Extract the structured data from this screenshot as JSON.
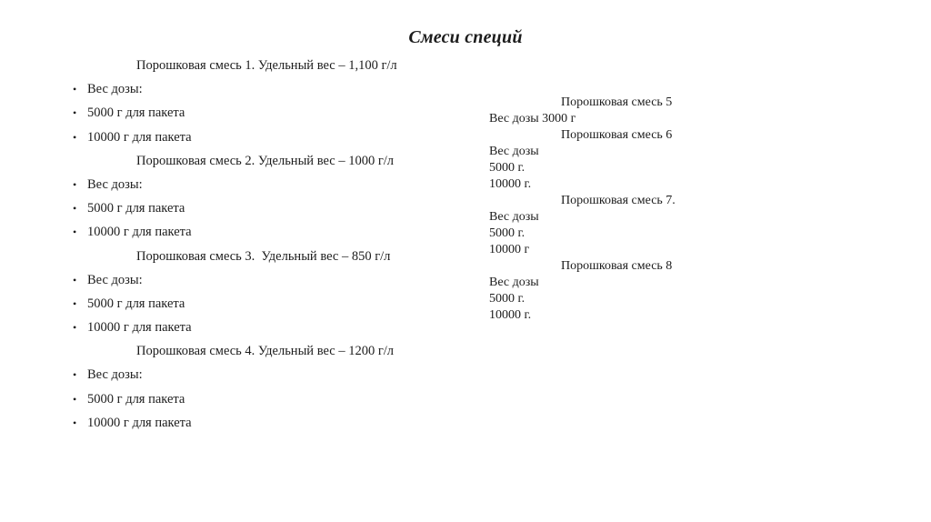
{
  "title": "Смеси специй",
  "glyphs": {
    "bullet": "•"
  },
  "left": {
    "sections": [
      {
        "header": "Порошковая смесь 1. Удельный вес – 1,100 г/л",
        "bullets": [
          "Вес дозы:",
          "5000 г для пакета",
          "10000 г для пакета"
        ]
      },
      {
        "header": "Порошковая смесь 2. Удельный вес – 1000 г/л",
        "bullets": [
          "Вес дозы:",
          "5000 г для пакета",
          "10000 г для пакета"
        ]
      },
      {
        "header": "Порошковая смесь 3.  Удельный вес – 850 г/л",
        "bullets": [
          "Вес дозы:",
          "5000 г для пакета",
          "10000 г для пакета"
        ]
      },
      {
        "header": "Порошковая смесь 4. Удельный вес – 1200 г/л",
        "bullets": [
          "Вес дозы:",
          "5000 г для пакета",
          "10000 г для пакета"
        ]
      }
    ]
  },
  "right": {
    "lines": [
      "Порошковая смесь 5",
      "Вес дозы 3000 г",
      "Порошковая смесь 6",
      "Вес дозы",
      "5000 г.",
      "10000 г.",
      "Порошковая смесь 7.",
      "Вес дозы",
      "5000 г.",
      "10000 г",
      "Порошковая смесь 8",
      "Вес дозы",
      "5000 г.",
      "10000 г."
    ]
  }
}
